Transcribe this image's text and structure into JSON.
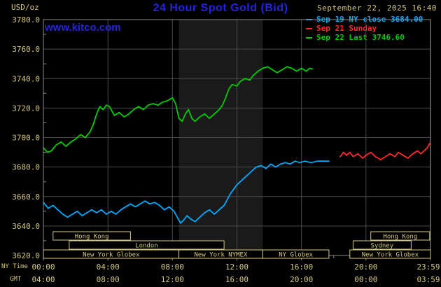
{
  "header": {
    "units": "USD/oz",
    "title": "24 Hour Spot Gold (Bid)",
    "datetime": "September 22, 2025 16:40",
    "watermark": "www.kitco.com"
  },
  "legend": [
    {
      "label": "Sep 19 NY close 3684.00",
      "color": "#00aaff"
    },
    {
      "label": "Sep 21 Sunday",
      "color": "#ff2a2a"
    },
    {
      "label": "Sep 22 Last 3746.60",
      "color": "#00cc00"
    }
  ],
  "axes": {
    "ny_label": "NY Time",
    "gmt_label": "GMT"
  },
  "colors": {
    "background": "#000000",
    "plot_band": "#1a1a1a",
    "grid": "#4a4a4a",
    "border": "#8a8a8a",
    "text_khaki": "#d5c87e",
    "title_blue": "#2323dd"
  },
  "chart_data": {
    "type": "line",
    "title": "24 Hour Spot Gold (Bid)",
    "xlabel": "NY Time",
    "ylabel": "USD/oz",
    "x_range": [
      0,
      24
    ],
    "y_range": [
      3620,
      3780
    ],
    "y_step": 20,
    "grid": true,
    "legend_position": "top-right",
    "y_tick_labels": [
      "3620.0",
      "3640.0",
      "3660.0",
      "3680.0",
      "3700.0",
      "3720.0",
      "3740.0",
      "3760.0",
      "3780.0"
    ],
    "x_ticks": [
      {
        "h": 0,
        "ny": "00:00",
        "gmt": "04:00"
      },
      {
        "h": 4,
        "ny": "04:00",
        "gmt": "08:00"
      },
      {
        "h": 8,
        "ny": "08:00",
        "gmt": "12:00"
      },
      {
        "h": 12,
        "ny": "12:00",
        "gmt": "16:00"
      },
      {
        "h": 16,
        "ny": "16:00",
        "gmt": "20:00"
      },
      {
        "h": 20,
        "ny": "20:00",
        "gmt": "00:00"
      },
      {
        "h": 23.983,
        "ny": "23:59",
        "gmt": "03:59"
      }
    ],
    "session_band": {
      "start": 8.4,
      "end": 13.6
    },
    "sessions": [
      {
        "label": "Hong Kong",
        "row": 0,
        "start": 0.6,
        "end": 5.4
      },
      {
        "label": "Hong Kong",
        "row": 0,
        "start": 20.3,
        "end": 23.95
      },
      {
        "label": "London",
        "row": 1,
        "start": 1.6,
        "end": 11.2
      },
      {
        "label": "Sydney",
        "row": 1,
        "start": 19.2,
        "end": 22.8
      },
      {
        "label": "New York Globex",
        "row": 2,
        "start": 0.0,
        "end": 8.4
      },
      {
        "label": "New York NYMEX",
        "row": 2,
        "start": 8.4,
        "end": 13.6
      },
      {
        "label": "NY Globex",
        "row": 2,
        "start": 13.6,
        "end": 17.7
      },
      {
        "label": "New York Globex",
        "row": 2,
        "start": 19.0,
        "end": 24.0
      }
    ],
    "series": [
      {
        "name": "Sep 19 NY close",
        "color": "#00aaff",
        "close": 3684.0,
        "points": [
          [
            0,
            3656
          ],
          [
            0.3,
            3652
          ],
          [
            0.6,
            3654
          ],
          [
            0.9,
            3651
          ],
          [
            1.2,
            3648
          ],
          [
            1.5,
            3646
          ],
          [
            1.8,
            3648
          ],
          [
            2.1,
            3650
          ],
          [
            2.4,
            3647
          ],
          [
            2.7,
            3649
          ],
          [
            3.0,
            3651
          ],
          [
            3.3,
            3649
          ],
          [
            3.6,
            3651
          ],
          [
            3.9,
            3648
          ],
          [
            4.2,
            3650
          ],
          [
            4.5,
            3648
          ],
          [
            4.8,
            3651
          ],
          [
            5.1,
            3653
          ],
          [
            5.4,
            3655
          ],
          [
            5.7,
            3653
          ],
          [
            6.0,
            3655
          ],
          [
            6.3,
            3657
          ],
          [
            6.6,
            3655
          ],
          [
            6.9,
            3656
          ],
          [
            7.2,
            3654
          ],
          [
            7.5,
            3651
          ],
          [
            7.8,
            3653
          ],
          [
            8.1,
            3650
          ],
          [
            8.3,
            3646
          ],
          [
            8.5,
            3642
          ],
          [
            8.7,
            3644
          ],
          [
            8.9,
            3647
          ],
          [
            9.1,
            3645
          ],
          [
            9.4,
            3643
          ],
          [
            9.7,
            3646
          ],
          [
            10.0,
            3649
          ],
          [
            10.3,
            3651
          ],
          [
            10.6,
            3648
          ],
          [
            10.9,
            3651
          ],
          [
            11.2,
            3654
          ],
          [
            11.4,
            3658
          ],
          [
            11.6,
            3662
          ],
          [
            11.8,
            3665
          ],
          [
            12.0,
            3668
          ],
          [
            12.3,
            3671
          ],
          [
            12.6,
            3674
          ],
          [
            12.9,
            3677
          ],
          [
            13.2,
            3680
          ],
          [
            13.5,
            3681
          ],
          [
            13.8,
            3679
          ],
          [
            14.1,
            3682
          ],
          [
            14.4,
            3680
          ],
          [
            14.7,
            3682
          ],
          [
            15.0,
            3683
          ],
          [
            15.3,
            3682
          ],
          [
            15.6,
            3684
          ],
          [
            15.9,
            3683
          ],
          [
            16.2,
            3684
          ],
          [
            16.6,
            3683
          ],
          [
            17.0,
            3684
          ],
          [
            17.4,
            3684
          ],
          [
            17.7,
            3684
          ]
        ]
      },
      {
        "name": "Sep 21 Sunday",
        "color": "#ff2a2a",
        "points": [
          [
            18.4,
            3687
          ],
          [
            18.6,
            3690
          ],
          [
            18.8,
            3688
          ],
          [
            19.0,
            3690
          ],
          [
            19.2,
            3687
          ],
          [
            19.5,
            3689
          ],
          [
            19.8,
            3686
          ],
          [
            20.0,
            3688
          ],
          [
            20.3,
            3690
          ],
          [
            20.6,
            3687
          ],
          [
            20.9,
            3685
          ],
          [
            21.2,
            3687
          ],
          [
            21.5,
            3689
          ],
          [
            21.8,
            3687
          ],
          [
            22.0,
            3690
          ],
          [
            22.3,
            3688
          ],
          [
            22.6,
            3686
          ],
          [
            22.9,
            3689
          ],
          [
            23.2,
            3691
          ],
          [
            23.4,
            3689
          ],
          [
            23.6,
            3691
          ],
          [
            23.8,
            3693
          ],
          [
            23.95,
            3696
          ]
        ]
      },
      {
        "name": "Sep 22 Last",
        "color": "#00cc00",
        "last": 3746.6,
        "points": [
          [
            0,
            3693
          ],
          [
            0.25,
            3690
          ],
          [
            0.5,
            3691
          ],
          [
            0.8,
            3695
          ],
          [
            1.1,
            3697
          ],
          [
            1.4,
            3694
          ],
          [
            1.7,
            3697
          ],
          [
            2.0,
            3699
          ],
          [
            2.3,
            3702
          ],
          [
            2.6,
            3700
          ],
          [
            2.9,
            3704
          ],
          [
            3.1,
            3709
          ],
          [
            3.3,
            3716
          ],
          [
            3.5,
            3721
          ],
          [
            3.7,
            3719
          ],
          [
            3.9,
            3722
          ],
          [
            4.1,
            3721
          ],
          [
            4.4,
            3715
          ],
          [
            4.7,
            3717
          ],
          [
            5.0,
            3714
          ],
          [
            5.3,
            3716
          ],
          [
            5.6,
            3719
          ],
          [
            5.9,
            3721
          ],
          [
            6.2,
            3719
          ],
          [
            6.5,
            3722
          ],
          [
            6.8,
            3723
          ],
          [
            7.1,
            3722
          ],
          [
            7.4,
            3724
          ],
          [
            7.7,
            3725
          ],
          [
            8.0,
            3727
          ],
          [
            8.2,
            3723
          ],
          [
            8.4,
            3713
          ],
          [
            8.6,
            3711
          ],
          [
            8.8,
            3716
          ],
          [
            9.0,
            3719
          ],
          [
            9.2,
            3713
          ],
          [
            9.4,
            3711
          ],
          [
            9.7,
            3714
          ],
          [
            10.0,
            3716
          ],
          [
            10.3,
            3713
          ],
          [
            10.6,
            3716
          ],
          [
            10.9,
            3719
          ],
          [
            11.1,
            3722
          ],
          [
            11.3,
            3727
          ],
          [
            11.5,
            3733
          ],
          [
            11.7,
            3736
          ],
          [
            12.0,
            3735
          ],
          [
            12.2,
            3738
          ],
          [
            12.5,
            3740
          ],
          [
            12.8,
            3739
          ],
          [
            13.0,
            3742
          ],
          [
            13.3,
            3745
          ],
          [
            13.6,
            3747
          ],
          [
            13.9,
            3748
          ],
          [
            14.2,
            3746
          ],
          [
            14.5,
            3744
          ],
          [
            14.8,
            3746
          ],
          [
            15.1,
            3748
          ],
          [
            15.4,
            3747
          ],
          [
            15.7,
            3745
          ],
          [
            16.0,
            3747
          ],
          [
            16.3,
            3745
          ],
          [
            16.5,
            3747
          ],
          [
            16.67,
            3746.6
          ]
        ]
      }
    ]
  }
}
